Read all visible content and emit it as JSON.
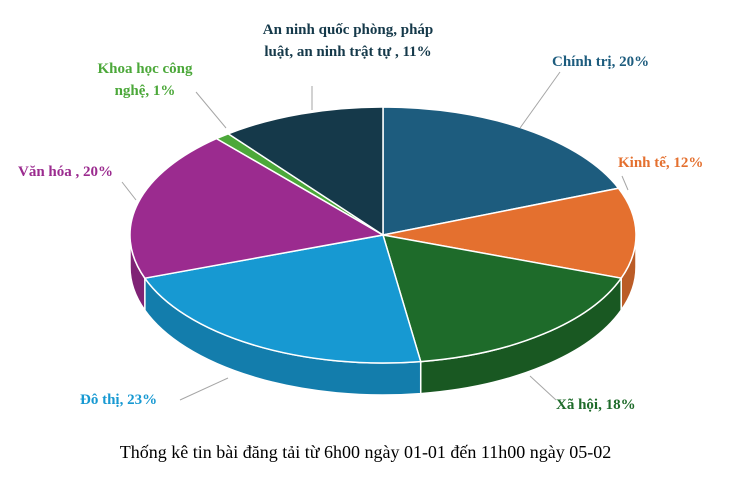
{
  "chart_data": {
    "type": "pie",
    "title": "Thống kê tin bài đăng tải từ 6h00 ngày 01-01 đến 11h00 ngày 05-02",
    "values": [
      20,
      12,
      18,
      23,
      20,
      1,
      11
    ],
    "value_labels": [
      "Chính trị, 20%",
      "Kinh tế, 12%",
      "Xã hội, 18%",
      "Đô thị, 23%",
      "Văn hóa , 20%",
      "Khoa học công nghệ, 1%",
      "An ninh quốc phòng, pháp luật, an ninh trật tự , 11%"
    ],
    "colors": [
      "#1d5c7e",
      "#e4702f",
      "#1e6b2a",
      "#1799d2",
      "#9b2b8f",
      "#4ca83a",
      "#15394a"
    ]
  }
}
